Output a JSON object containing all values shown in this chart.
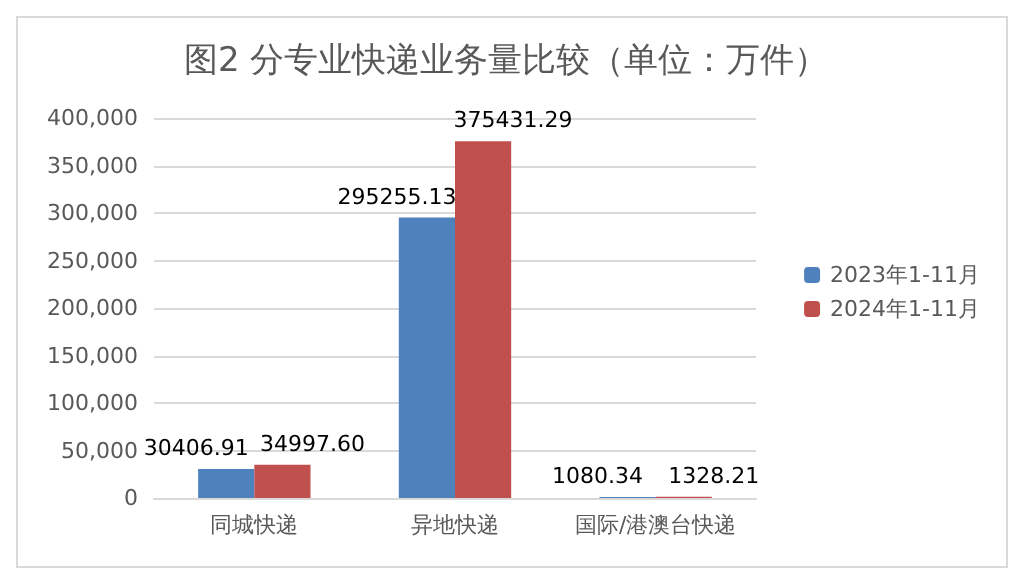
{
  "chart_data": {
    "type": "bar",
    "title": "图2 分专业快递业务量比较（单位：万件）",
    "categories": [
      "同城快递",
      "异地快递",
      "国际/港澳台快递"
    ],
    "series": [
      {
        "name": "2023年1-11月",
        "color": "#4f81bd",
        "values": [
          30406.91,
          295255.13,
          1080.34
        ],
        "value_labels": [
          "30406.91",
          "295255.13",
          "1080.34"
        ]
      },
      {
        "name": "2024年1-11月",
        "color": "#c0504d",
        "values": [
          34997.6,
          375431.29,
          1328.21
        ],
        "value_labels": [
          "34997.60",
          "375431.29",
          "1328.21"
        ]
      }
    ],
    "ylim": [
      0,
      400000
    ],
    "yticks": [
      0,
      {
        "value": 50000,
        "label": "50,000"
      },
      {
        "value": 100000,
        "label": "100,000"
      },
      {
        "value": 150000,
        "label": "150,000"
      },
      {
        "value": 200000,
        "label": "200,000"
      },
      {
        "value": 250000,
        "label": "250,000"
      },
      {
        "value": 300000,
        "label": "300,000"
      },
      {
        "value": 350000,
        "label": "350,000"
      },
      {
        "value": 400000,
        "label": "400,000"
      }
    ],
    "grid": "y",
    "legend": "right"
  }
}
